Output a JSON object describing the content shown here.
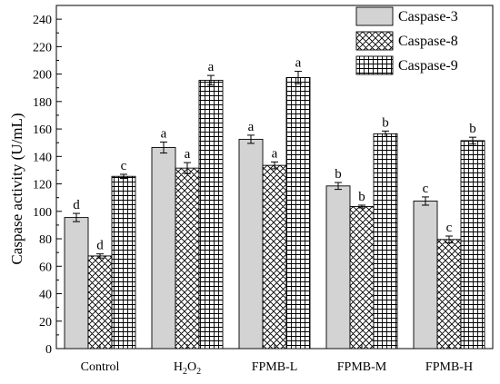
{
  "chart_data": {
    "type": "bar",
    "categories": [
      "Control",
      "H2O2",
      "FPMB-L",
      "FPMB-M",
      "FPMB-H"
    ],
    "series": [
      {
        "name": "Caspase-3",
        "pattern": "solid-gray",
        "values": [
          95.5,
          146.5,
          152.5,
          118.5,
          107.5
        ],
        "errors": [
          3,
          4,
          3,
          2.5,
          3
        ],
        "letters": [
          "d",
          "a",
          "a",
          "b",
          "c"
        ]
      },
      {
        "name": "Caspase-8",
        "pattern": "crosshatch",
        "values": [
          67.5,
          131.5,
          133.5,
          103.5,
          79.5
        ],
        "errors": [
          1.5,
          4,
          2.5,
          1,
          2.5
        ],
        "letters": [
          "d",
          "a",
          "a",
          "b",
          "c"
        ]
      },
      {
        "name": "Caspase-9",
        "pattern": "grid",
        "values": [
          125.5,
          195.5,
          197.5,
          156.5,
          151.5
        ],
        "errors": [
          1.5,
          3.5,
          4.5,
          2,
          2.5
        ],
        "letters": [
          "c",
          "a",
          "a",
          "b",
          "b"
        ]
      }
    ],
    "title": "",
    "xlabel": "",
    "ylabel": "Caspase activity (U/mL)",
    "ylim": [
      0,
      250
    ],
    "yticks": [
      0,
      20,
      40,
      60,
      80,
      100,
      120,
      140,
      160,
      180,
      200,
      220,
      240
    ],
    "grid": false,
    "legend": "top-right",
    "colors": {
      "bar_fill": "#d3d3d3",
      "stroke": "#000000",
      "background": "#ffffff"
    }
  }
}
